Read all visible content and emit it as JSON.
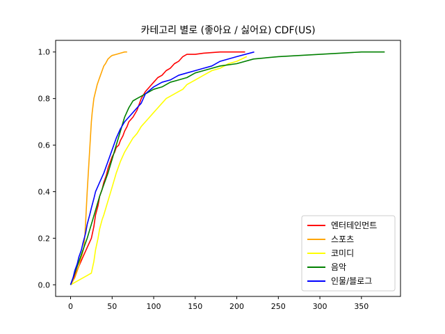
{
  "chart_data": {
    "type": "line",
    "title": "카테고리 별로 (좋아요 / 싫어요) CDF(US)",
    "xlabel": "",
    "ylabel": "",
    "xlim": [
      -18,
      397
    ],
    "ylim": [
      -0.05,
      1.05
    ],
    "xticks": [
      0,
      50,
      100,
      150,
      200,
      250,
      300,
      350
    ],
    "yticks": [
      0.0,
      0.2,
      0.4,
      0.6,
      0.8,
      1.0
    ],
    "xtick_labels": [
      "0",
      "50",
      "100",
      "150",
      "200",
      "250",
      "300",
      "350"
    ],
    "ytick_labels": [
      "0.0",
      "0.2",
      "0.4",
      "0.6",
      "0.8",
      "1.0"
    ],
    "grid": false,
    "legend_position": "lower right",
    "series": [
      {
        "name": "엔터테인먼트",
        "color": "#ff0000",
        "x": [
          0,
          5,
          10,
          15,
          20,
          25,
          28,
          30,
          33,
          35,
          38,
          40,
          43,
          45,
          48,
          50,
          53,
          55,
          58,
          60,
          63,
          65,
          68,
          70,
          75,
          80,
          85,
          90,
          95,
          100,
          105,
          110,
          115,
          120,
          125,
          130,
          135,
          140,
          150,
          160,
          180,
          200,
          210
        ],
        "y": [
          0.0,
          0.04,
          0.08,
          0.12,
          0.16,
          0.2,
          0.25,
          0.3,
          0.34,
          0.38,
          0.41,
          0.44,
          0.47,
          0.5,
          0.53,
          0.55,
          0.57,
          0.59,
          0.6,
          0.62,
          0.64,
          0.66,
          0.68,
          0.7,
          0.72,
          0.75,
          0.8,
          0.83,
          0.85,
          0.87,
          0.89,
          0.9,
          0.92,
          0.93,
          0.95,
          0.96,
          0.98,
          0.99,
          0.99,
          0.995,
          1.0,
          1.0,
          1.0
        ]
      },
      {
        "name": "스포츠",
        "color": "#ffa500",
        "x": [
          0,
          5,
          8,
          10,
          12,
          14,
          16,
          17,
          18,
          19,
          20,
          21,
          22,
          23,
          24,
          25,
          26,
          27,
          28,
          30,
          32,
          34,
          36,
          38,
          40,
          42,
          45,
          48,
          50,
          55,
          60,
          65,
          68
        ],
        "y": [
          0.0,
          0.03,
          0.06,
          0.08,
          0.11,
          0.13,
          0.16,
          0.2,
          0.26,
          0.33,
          0.4,
          0.46,
          0.52,
          0.58,
          0.64,
          0.7,
          0.74,
          0.77,
          0.8,
          0.83,
          0.86,
          0.88,
          0.9,
          0.92,
          0.94,
          0.95,
          0.97,
          0.98,
          0.985,
          0.99,
          0.995,
          1.0,
          1.0
        ]
      },
      {
        "name": "코미디",
        "color": "#ffff00",
        "x": [
          0,
          10,
          20,
          25,
          28,
          30,
          33,
          35,
          38,
          40,
          45,
          50,
          55,
          60,
          65,
          70,
          75,
          80,
          85,
          90,
          95,
          100,
          105,
          110,
          115,
          120,
          125,
          130,
          135,
          140,
          150,
          160,
          170,
          180,
          190,
          200,
          212
        ],
        "y": [
          0.0,
          0.02,
          0.04,
          0.05,
          0.1,
          0.15,
          0.2,
          0.24,
          0.28,
          0.3,
          0.36,
          0.42,
          0.48,
          0.53,
          0.57,
          0.6,
          0.63,
          0.65,
          0.68,
          0.7,
          0.72,
          0.74,
          0.76,
          0.78,
          0.8,
          0.81,
          0.82,
          0.83,
          0.84,
          0.86,
          0.88,
          0.9,
          0.92,
          0.93,
          0.95,
          0.96,
          0.98
        ]
      },
      {
        "name": "음악",
        "color": "#008000",
        "x": [
          0,
          5,
          10,
          15,
          20,
          25,
          30,
          35,
          40,
          45,
          50,
          55,
          60,
          65,
          70,
          75,
          80,
          85,
          90,
          100,
          110,
          120,
          130,
          140,
          150,
          160,
          170,
          180,
          200,
          220,
          250,
          300,
          350,
          378
        ],
        "y": [
          0.0,
          0.05,
          0.1,
          0.15,
          0.2,
          0.26,
          0.32,
          0.38,
          0.43,
          0.48,
          0.54,
          0.6,
          0.66,
          0.72,
          0.76,
          0.79,
          0.8,
          0.81,
          0.82,
          0.84,
          0.85,
          0.87,
          0.88,
          0.89,
          0.91,
          0.92,
          0.93,
          0.94,
          0.95,
          0.97,
          0.98,
          0.99,
          1.0,
          1.0
        ]
      },
      {
        "name": "인물/블로그",
        "color": "#0000ff",
        "x": [
          0,
          3,
          5,
          8,
          10,
          13,
          15,
          18,
          20,
          23,
          25,
          28,
          30,
          35,
          40,
          45,
          50,
          55,
          60,
          65,
          70,
          75,
          80,
          85,
          90,
          100,
          110,
          120,
          130,
          140,
          150,
          160,
          170,
          180,
          200,
          221
        ],
        "y": [
          0.0,
          0.03,
          0.06,
          0.09,
          0.12,
          0.15,
          0.18,
          0.22,
          0.26,
          0.3,
          0.33,
          0.37,
          0.4,
          0.44,
          0.48,
          0.53,
          0.58,
          0.63,
          0.67,
          0.7,
          0.72,
          0.74,
          0.76,
          0.78,
          0.82,
          0.85,
          0.87,
          0.88,
          0.9,
          0.91,
          0.92,
          0.93,
          0.94,
          0.96,
          0.98,
          1.0
        ]
      }
    ]
  }
}
